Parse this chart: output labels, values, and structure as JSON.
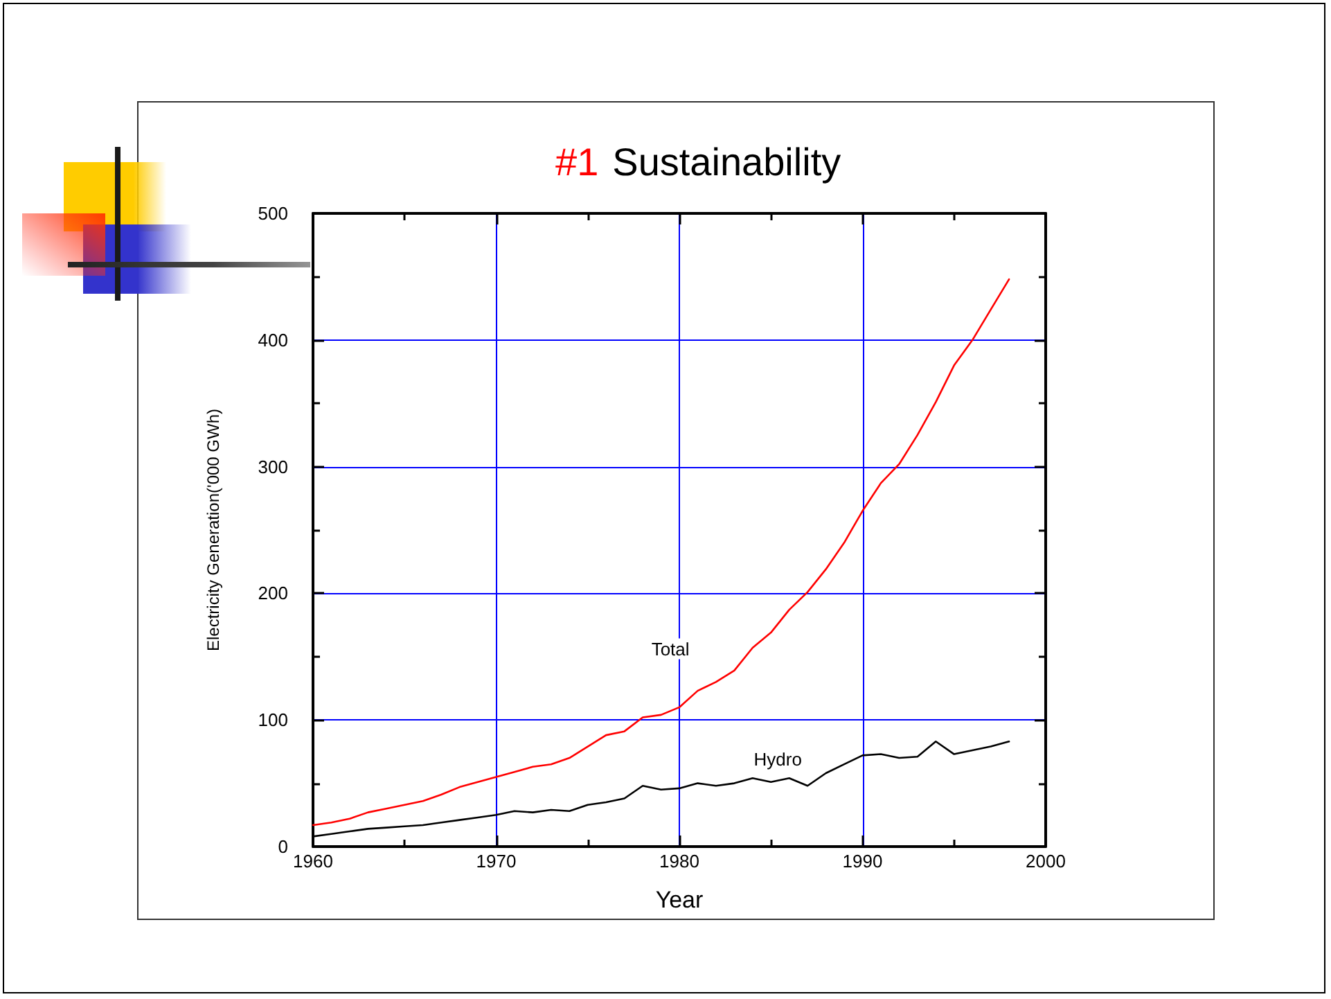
{
  "chart_data": {
    "type": "line",
    "title": "#1 Sustainability",
    "xlabel": "Year",
    "ylabel": "Electricity Generation('000 GWh)",
    "x": [
      1960,
      1961,
      1962,
      1963,
      1964,
      1965,
      1966,
      1967,
      1968,
      1969,
      1970,
      1971,
      1972,
      1973,
      1974,
      1975,
      1976,
      1977,
      1978,
      1979,
      1980,
      1981,
      1982,
      1983,
      1984,
      1985,
      1986,
      1987,
      1988,
      1989,
      1990,
      1991,
      1992,
      1993,
      1994,
      1995,
      1996,
      1997,
      1998
    ],
    "series": [
      {
        "name": "Total",
        "color": "#ff0000",
        "values": [
          17,
          19,
          22,
          27,
          30,
          33,
          36,
          41,
          47,
          51,
          55,
          59,
          63,
          65,
          70,
          79,
          88,
          91,
          102,
          104,
          110,
          123,
          130,
          139,
          157,
          169,
          187,
          201,
          219,
          240,
          265,
          287,
          302,
          325,
          351,
          380,
          400,
          424,
          448
        ]
      },
      {
        "name": "Hydro",
        "color": "#000000",
        "values": [
          8,
          10,
          12,
          14,
          15,
          16,
          17,
          19,
          21,
          23,
          25,
          28,
          27,
          29,
          28,
          33,
          35,
          38,
          48,
          45,
          46,
          50,
          48,
          50,
          54,
          51,
          54,
          48,
          58,
          65,
          72,
          73,
          70,
          71,
          83,
          73,
          76,
          79,
          83
        ]
      }
    ],
    "xlim": [
      1960,
      2000
    ],
    "xticks": [
      1960,
      1970,
      1980,
      1990,
      2000
    ],
    "ylim": [
      0,
      500
    ],
    "yticks": [
      0,
      100,
      200,
      300,
      400,
      500
    ],
    "grid": true,
    "marker": "none",
    "legend": false
  }
}
